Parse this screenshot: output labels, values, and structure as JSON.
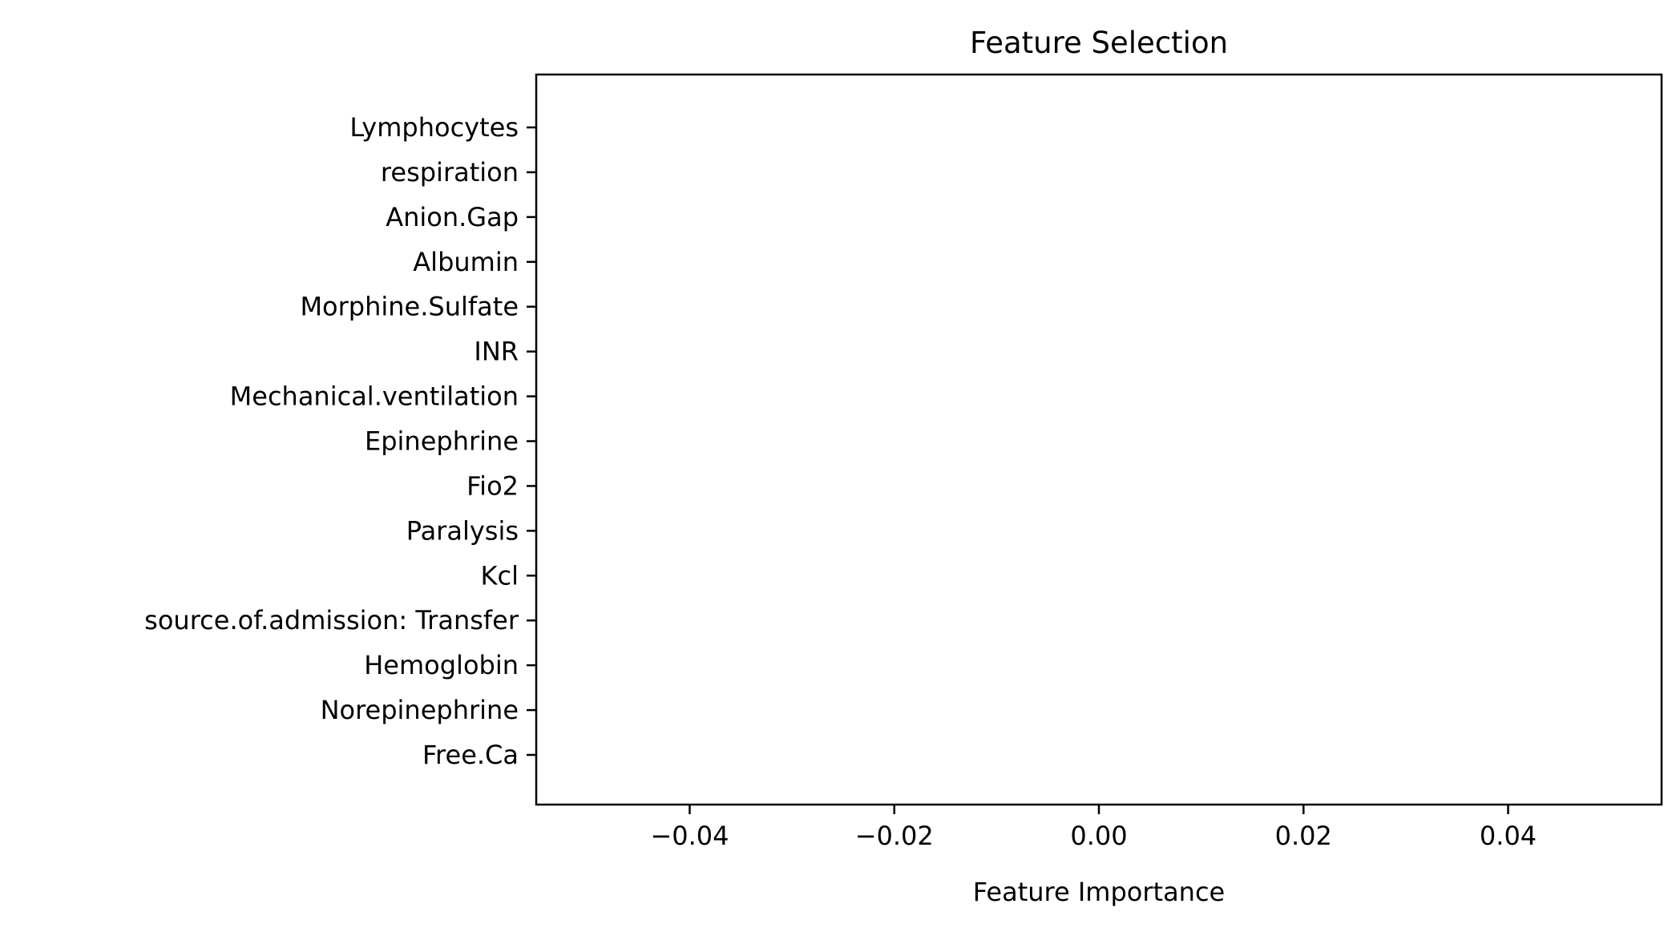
{
  "chart_data": {
    "type": "bar",
    "orientation": "horizontal",
    "title": "Feature Selection",
    "xlabel": "Feature Importance",
    "ylabel": "",
    "categories": [
      "Lymphocytes",
      "respiration",
      "Anion.Gap",
      "Albumin",
      "Morphine.Sulfate",
      "INR",
      "Mechanical.ventilation",
      "Epinephrine",
      "Fio2",
      "Paralysis",
      "Kcl",
      "source.of.admission: Transfer",
      "Hemoglobin",
      "Norepinephrine",
      "Free.Ca"
    ],
    "values": [
      0,
      0,
      0,
      0,
      0,
      0,
      0,
      0,
      0,
      0,
      0,
      0,
      0,
      0,
      0
    ],
    "xlim": [
      -0.055,
      0.055
    ],
    "xticks": [
      -0.04,
      -0.02,
      0.0,
      0.02,
      0.04
    ],
    "xtick_labels": [
      "−0.04",
      "−0.02",
      "0.00",
      "0.02",
      "0.04"
    ],
    "grid": false,
    "legend": "none",
    "colors": {
      "bar": "#1f77b4",
      "axis": "#000000",
      "text": "#000000"
    }
  }
}
